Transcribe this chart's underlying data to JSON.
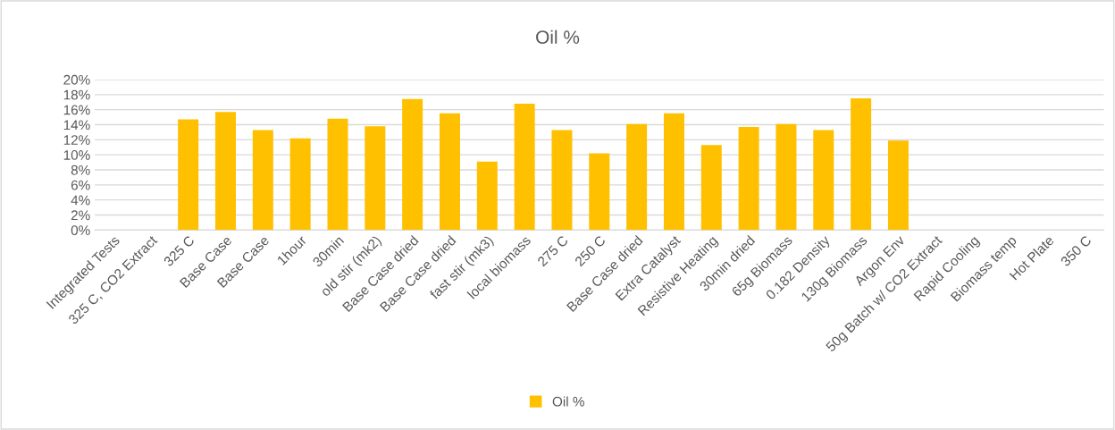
{
  "chart_data": {
    "type": "bar",
    "title": "Oil %",
    "categories": [
      "Integrated Tests",
      "325 C, CO2 Extract",
      "325 C",
      "Base Case",
      "Base Case",
      "1hour",
      "30min",
      "old stir (mk2)",
      "Base Case dried",
      "Base Case dried",
      "fast stir (mk3)",
      "local biomass",
      "275 C",
      "250 C",
      "Base Case dried",
      "Extra Catalyst",
      "Resistive Heating",
      "30min dried",
      "65g Biomass",
      "0.182 Density",
      "130g Biomass",
      "Argon Env",
      "50g Batch w/ CO2 Extract",
      "Rapid Cooling",
      "Biomass temp",
      "Hot Plate",
      "350 C"
    ],
    "series": [
      {
        "name": "Oil %",
        "color": "#ffc000",
        "values": [
          null,
          null,
          14.7,
          15.7,
          13.3,
          12.2,
          14.8,
          13.8,
          17.4,
          15.5,
          9.1,
          16.8,
          13.3,
          10.2,
          14.1,
          15.5,
          11.3,
          13.7,
          14.1,
          13.3,
          17.5,
          11.9,
          null,
          null,
          null,
          null,
          null
        ]
      }
    ],
    "ylim": [
      0,
      20
    ],
    "yticks": [
      {
        "value": 0,
        "label": "0%"
      },
      {
        "value": 2,
        "label": "2%"
      },
      {
        "value": 4,
        "label": "4%"
      },
      {
        "value": 6,
        "label": "6%"
      },
      {
        "value": 8,
        "label": "8%"
      },
      {
        "value": 10,
        "label": "10%"
      },
      {
        "value": 12,
        "label": "12%"
      },
      {
        "value": 14,
        "label": "14%"
      },
      {
        "value": 16,
        "label": "16%"
      },
      {
        "value": 18,
        "label": "18%"
      },
      {
        "value": 20,
        "label": "20%"
      }
    ],
    "grid": "y",
    "legend": "bottom"
  }
}
